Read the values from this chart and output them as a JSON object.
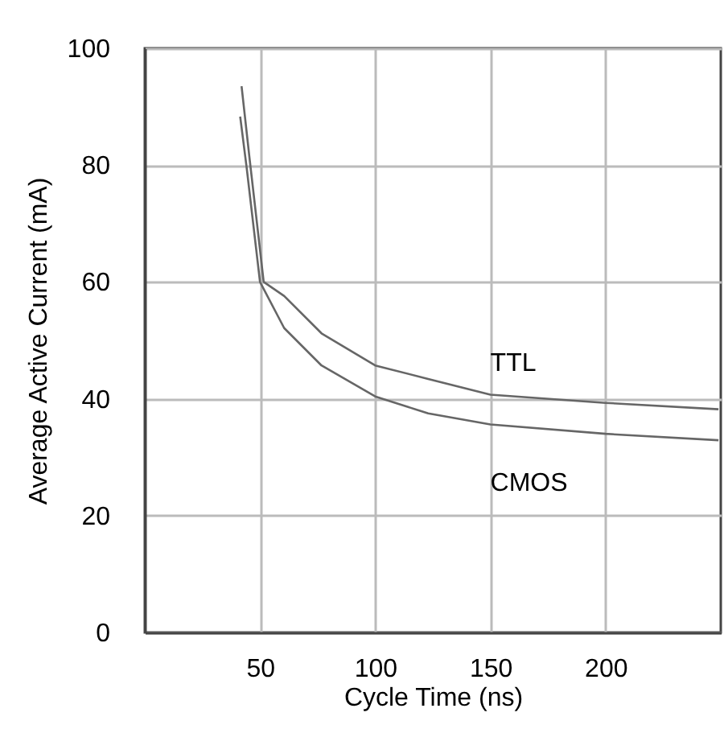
{
  "chart_data": {
    "type": "line",
    "xlabel": "Cycle Time (ns)",
    "ylabel": "Average Active Current (mA)",
    "xlim": [
      0,
      250
    ],
    "xticks": [
      50,
      100,
      150,
      200
    ],
    "ylim": [
      0,
      100
    ],
    "yticks": [
      0,
      20,
      40,
      60,
      80,
      100
    ],
    "grid": true,
    "legend": false,
    "marker": "none",
    "line_style": "solid",
    "series": [
      {
        "name": "TTL",
        "color": "#666666",
        "x": [
          42,
          45.4,
          51.6,
          60.5,
          76.7,
          100,
          123,
          150,
          200,
          249
        ],
        "values": [
          93.5,
          81.4,
          60,
          57.6,
          51.2,
          45.7,
          43.4,
          40.7,
          39.3,
          38.2
        ]
      },
      {
        "name": "CMOS",
        "color": "#666666",
        "x": [
          41.4,
          44.2,
          50,
          60.5,
          76.7,
          100,
          123,
          150,
          200,
          249
        ],
        "values": [
          88.3,
          79.6,
          60,
          52.1,
          45.7,
          40.4,
          37.5,
          35.6,
          34,
          32.9
        ]
      }
    ]
  }
}
